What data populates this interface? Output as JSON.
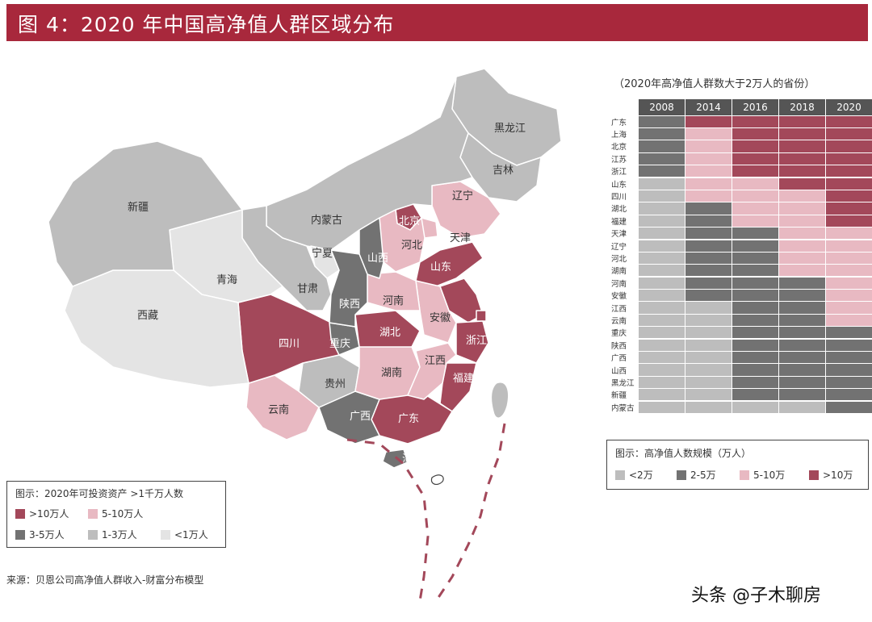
{
  "title": "图 4：2020 年中国高净值人群区域分布",
  "colors": {
    "gt10": "#a3485a",
    "r5_10": "#e8b9c2",
    "r3_5": "#727272",
    "r1_3": "#bdbdbd",
    "lt1": "#e4e4e4"
  },
  "map": {
    "provinces": [
      {
        "name": "黑龙江",
        "tier": "1-3万人"
      },
      {
        "name": "吉林",
        "tier": "1-3万人"
      },
      {
        "name": "辽宁",
        "tier": "5-10万人"
      },
      {
        "name": "北京",
        "tier": ">10万人"
      },
      {
        "name": "天津",
        "tier": "5-10万人"
      },
      {
        "name": "河北",
        "tier": "5-10万人"
      },
      {
        "name": "山东",
        "tier": ">10万人"
      },
      {
        "name": "江苏",
        "tier": ">10万人"
      },
      {
        "name": "上海",
        "tier": ">10万人"
      },
      {
        "name": "浙江",
        "tier": ">10万人"
      },
      {
        "name": "福建",
        "tier": ">10万人"
      },
      {
        "name": "广东",
        "tier": ">10万人"
      },
      {
        "name": "海南",
        "tier": "3-5万人"
      },
      {
        "name": "广西",
        "tier": "3-5万人"
      },
      {
        "name": "云南",
        "tier": "5-10万人"
      },
      {
        "name": "贵州",
        "tier": "1-3万人"
      },
      {
        "name": "四川",
        "tier": ">10万人"
      },
      {
        "name": "重庆",
        "tier": "3-5万人"
      },
      {
        "name": "湖北",
        "tier": ">10万人"
      },
      {
        "name": "湖南",
        "tier": "5-10万人"
      },
      {
        "name": "江西",
        "tier": "5-10万人"
      },
      {
        "name": "安徽",
        "tier": "5-10万人"
      },
      {
        "name": "河南",
        "tier": "5-10万人"
      },
      {
        "name": "山西",
        "tier": "3-5万人"
      },
      {
        "name": "陕西",
        "tier": "3-5万人"
      },
      {
        "name": "内蒙古",
        "tier": "1-3万人"
      },
      {
        "name": "宁夏",
        "tier": "<1万人"
      },
      {
        "name": "甘肃",
        "tier": "1-3万人"
      },
      {
        "name": "青海",
        "tier": "<1万人"
      },
      {
        "name": "西藏",
        "tier": "<1万人"
      },
      {
        "name": "新疆",
        "tier": "1-3万人"
      }
    ]
  },
  "legend": {
    "title": "图示：2020年可投资资产 >1千万人数",
    "items": [
      ">10万人",
      "5-10万人",
      "3-5万人",
      "1-3万人",
      "<1万人"
    ]
  },
  "source": "来源：贝恩公司高净值人群收入-财富分布模型",
  "handle": "头条 @子木聊房",
  "grid": {
    "title": "（2020年高净值人群数大于2万人的省份）",
    "years": [
      "2008",
      "2014",
      "2016",
      "2018",
      "2020"
    ],
    "rows": [
      {
        "province": "广东",
        "tiers": [
          "2-5",
          ">10",
          ">10",
          ">10",
          ">10"
        ]
      },
      {
        "province": "上海",
        "tiers": [
          "2-5",
          "5-10",
          ">10",
          ">10",
          ">10"
        ]
      },
      {
        "province": "北京",
        "tiers": [
          "2-5",
          "5-10",
          ">10",
          ">10",
          ">10"
        ]
      },
      {
        "province": "江苏",
        "tiers": [
          "2-5",
          "5-10",
          ">10",
          ">10",
          ">10"
        ]
      },
      {
        "province": "浙江",
        "tiers": [
          "2-5",
          "5-10",
          ">10",
          ">10",
          ">10"
        ]
      },
      {
        "province": "山东",
        "tiers": [
          "<2",
          "5-10",
          "5-10",
          ">10",
          ">10"
        ]
      },
      {
        "province": "四川",
        "tiers": [
          "<2",
          "5-10",
          "5-10",
          "5-10",
          ">10"
        ]
      },
      {
        "province": "湖北",
        "tiers": [
          "<2",
          "2-5",
          "5-10",
          "5-10",
          ">10"
        ]
      },
      {
        "province": "福建",
        "tiers": [
          "<2",
          "2-5",
          "5-10",
          "5-10",
          ">10"
        ]
      },
      {
        "province": "天津",
        "tiers": [
          "<2",
          "2-5",
          "2-5",
          "5-10",
          "5-10"
        ]
      },
      {
        "province": "辽宁",
        "tiers": [
          "<2",
          "2-5",
          "2-5",
          "5-10",
          "5-10"
        ]
      },
      {
        "province": "河北",
        "tiers": [
          "<2",
          "2-5",
          "2-5",
          "5-10",
          "5-10"
        ]
      },
      {
        "province": "湖南",
        "tiers": [
          "<2",
          "2-5",
          "2-5",
          "5-10",
          "5-10"
        ]
      },
      {
        "province": "河南",
        "tiers": [
          "<2",
          "2-5",
          "2-5",
          "2-5",
          "5-10"
        ]
      },
      {
        "province": "安徽",
        "tiers": [
          "<2",
          "2-5",
          "2-5",
          "2-5",
          "5-10"
        ]
      },
      {
        "province": "江西",
        "tiers": [
          "<2",
          "<2",
          "2-5",
          "2-5",
          "5-10"
        ]
      },
      {
        "province": "云南",
        "tiers": [
          "<2",
          "<2",
          "2-5",
          "2-5",
          "5-10"
        ]
      },
      {
        "province": "重庆",
        "tiers": [
          "<2",
          "<2",
          "2-5",
          "2-5",
          "2-5"
        ]
      },
      {
        "province": "陕西",
        "tiers": [
          "<2",
          "<2",
          "2-5",
          "2-5",
          "2-5"
        ]
      },
      {
        "province": "广西",
        "tiers": [
          "<2",
          "<2",
          "2-5",
          "2-5",
          "2-5"
        ]
      },
      {
        "province": "山西",
        "tiers": [
          "<2",
          "<2",
          "2-5",
          "2-5",
          "2-5"
        ]
      },
      {
        "province": "黑龙江",
        "tiers": [
          "<2",
          "<2",
          "2-5",
          "2-5",
          "2-5"
        ]
      },
      {
        "province": "新疆",
        "tiers": [
          "<2",
          "<2",
          "2-5",
          "2-5",
          "2-5"
        ]
      },
      {
        "province": "内蒙古",
        "tiers": [
          "<2",
          "<2",
          "<2",
          "<2",
          "2-5"
        ]
      }
    ],
    "legend": {
      "title": "图示：高净值人数规模（万人）",
      "items": [
        "<2万",
        "2-5万",
        "5-10万",
        ">10万"
      ]
    }
  }
}
